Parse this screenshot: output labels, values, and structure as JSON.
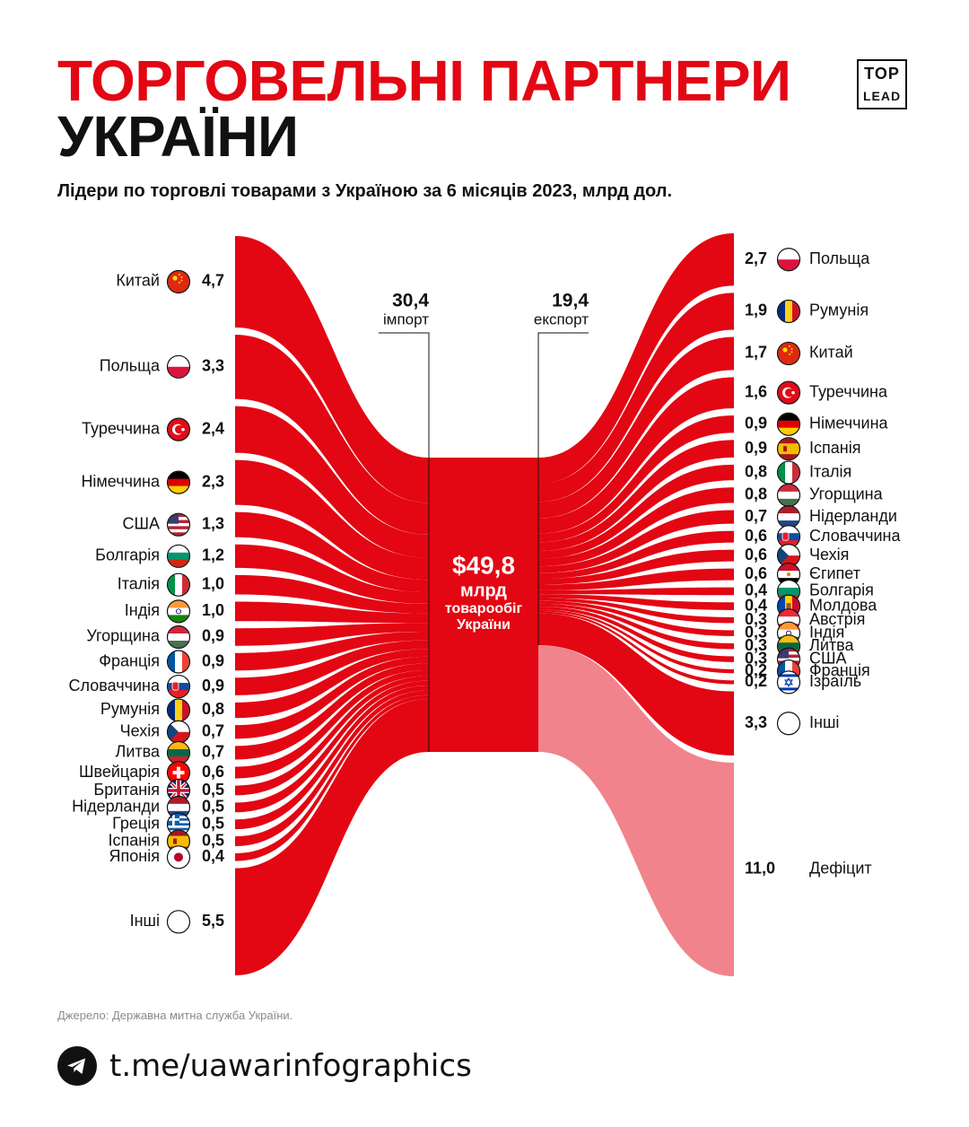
{
  "header": {
    "title_line1": "ТОРГОВЕЛЬНІ ПАРТНЕРИ",
    "title_line2": "УКРАЇНИ",
    "subtitle": "Лідери по торговлі товарами з Україною за 6 місяців 2023, млрд дол.",
    "logo_top": "TOP",
    "logo_bottom": "LEAD"
  },
  "colors": {
    "accent": "#e30613",
    "deficit": "#f0838b",
    "text": "#111111"
  },
  "chart_data": {
    "type": "sankey",
    "title": "Торговельні партнери України",
    "center": {
      "amount": "$49,8",
      "unit": "млрд",
      "label1": "товарообіг",
      "label2": "України"
    },
    "import_total": {
      "value": "30,4",
      "label": "імпорт"
    },
    "export_total": {
      "value": "19,4",
      "label": "експорт"
    },
    "imports": [
      {
        "country": "Китай",
        "value": "4,7",
        "flag": "china-flag"
      },
      {
        "country": "Польща",
        "value": "3,3",
        "flag": "poland-flag"
      },
      {
        "country": "Туреччина",
        "value": "2,4",
        "flag": "turkey-flag"
      },
      {
        "country": "Німеччина",
        "value": "2,3",
        "flag": "germany-flag"
      },
      {
        "country": "США",
        "value": "1,3",
        "flag": "usa-flag"
      },
      {
        "country": "Болгарія",
        "value": "1,2",
        "flag": "bulgaria-flag"
      },
      {
        "country": "Італія",
        "value": "1,0",
        "flag": "italy-flag"
      },
      {
        "country": "Індія",
        "value": "1,0",
        "flag": "india-flag"
      },
      {
        "country": "Угорщина",
        "value": "0,9",
        "flag": "hungary-flag"
      },
      {
        "country": "Франція",
        "value": "0,9",
        "flag": "france-flag"
      },
      {
        "country": "Словаччина",
        "value": "0,9",
        "flag": "slovakia-flag"
      },
      {
        "country": "Румунія",
        "value": "0,8",
        "flag": "romania-flag"
      },
      {
        "country": "Чехія",
        "value": "0,7",
        "flag": "czech-flag"
      },
      {
        "country": "Литва",
        "value": "0,7",
        "flag": "lithuania-flag"
      },
      {
        "country": "Швейцарія",
        "value": "0,6",
        "flag": "switzerland-flag"
      },
      {
        "country": "Британія",
        "value": "0,5",
        "flag": "uk-flag"
      },
      {
        "country": "Нідерланди",
        "value": "0,5",
        "flag": "netherlands-flag"
      },
      {
        "country": "Греція",
        "value": "0,5",
        "flag": "greece-flag"
      },
      {
        "country": "Іспанія",
        "value": "0,5",
        "flag": "spain-flag"
      },
      {
        "country": "Японія",
        "value": "0,4",
        "flag": "japan-flag"
      },
      {
        "country": "Інші",
        "value": "5,5",
        "flag": "other-flag"
      }
    ],
    "exports": [
      {
        "country": "Польща",
        "value": "2,7",
        "flag": "poland-flag"
      },
      {
        "country": "Румунія",
        "value": "1,9",
        "flag": "romania-flag"
      },
      {
        "country": "Китай",
        "value": "1,7",
        "flag": "china-flag"
      },
      {
        "country": "Туреччина",
        "value": "1,6",
        "flag": "turkey-flag"
      },
      {
        "country": "Німеччина",
        "value": "0,9",
        "flag": "germany-flag"
      },
      {
        "country": "Іспанія",
        "value": "0,9",
        "flag": "spain-flag"
      },
      {
        "country": "Італія",
        "value": "0,8",
        "flag": "italy-flag"
      },
      {
        "country": "Угорщина",
        "value": "0,8",
        "flag": "hungary-flag"
      },
      {
        "country": "Нідерланди",
        "value": "0,7",
        "flag": "netherlands-flag"
      },
      {
        "country": "Словаччина",
        "value": "0,6",
        "flag": "slovakia-flag"
      },
      {
        "country": "Чехія",
        "value": "0,6",
        "flag": "czech-flag"
      },
      {
        "country": "Єгипет",
        "value": "0,6",
        "flag": "egypt-flag"
      },
      {
        "country": "Болгарія",
        "value": "0,4",
        "flag": "bulgaria-flag"
      },
      {
        "country": "Молдова",
        "value": "0,4",
        "flag": "moldova-flag"
      },
      {
        "country": "Австрія",
        "value": "0,3",
        "flag": "austria-flag"
      },
      {
        "country": "Індія",
        "value": "0,3",
        "flag": "india-flag"
      },
      {
        "country": "Литва",
        "value": "0,3",
        "flag": "lithuania-flag"
      },
      {
        "country": "США",
        "value": "0,3",
        "flag": "usa-flag"
      },
      {
        "country": "Франція",
        "value": "0,2",
        "flag": "france-flag"
      },
      {
        "country": "Ізраїль",
        "value": "0,2",
        "flag": "israel-flag"
      },
      {
        "country": "Інші",
        "value": "3,3",
        "flag": "other-flag"
      }
    ],
    "deficit": {
      "label": "Дефіцит",
      "value": "11,0"
    }
  },
  "footer": {
    "source": "Джерело: Державна митна служба України.",
    "link": "t.me/uawarinfographics"
  }
}
